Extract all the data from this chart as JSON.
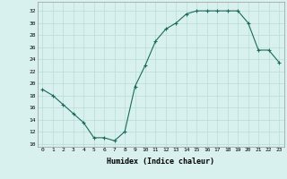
{
  "x": [
    0,
    1,
    2,
    3,
    4,
    5,
    6,
    7,
    8,
    9,
    10,
    11,
    12,
    13,
    14,
    15,
    16,
    17,
    18,
    19,
    20,
    21,
    22,
    23
  ],
  "y": [
    19,
    18,
    16.5,
    15,
    13.5,
    11,
    11,
    10.5,
    12,
    19.5,
    23,
    27,
    29,
    30,
    31.5,
    32,
    32,
    32,
    32,
    32,
    30,
    25.5,
    25.5,
    23.5
  ],
  "line_color": "#1a6b5a",
  "marker": "+",
  "bg_color": "#d8f0ee",
  "grid_color": "#b8ddd8",
  "xlabel": "Humidex (Indice chaleur)",
  "ylabel_ticks": [
    10,
    12,
    14,
    16,
    18,
    20,
    22,
    24,
    26,
    28,
    30,
    32
  ],
  "ylim": [
    9.5,
    33.5
  ],
  "xlim": [
    -0.5,
    23.5
  ]
}
